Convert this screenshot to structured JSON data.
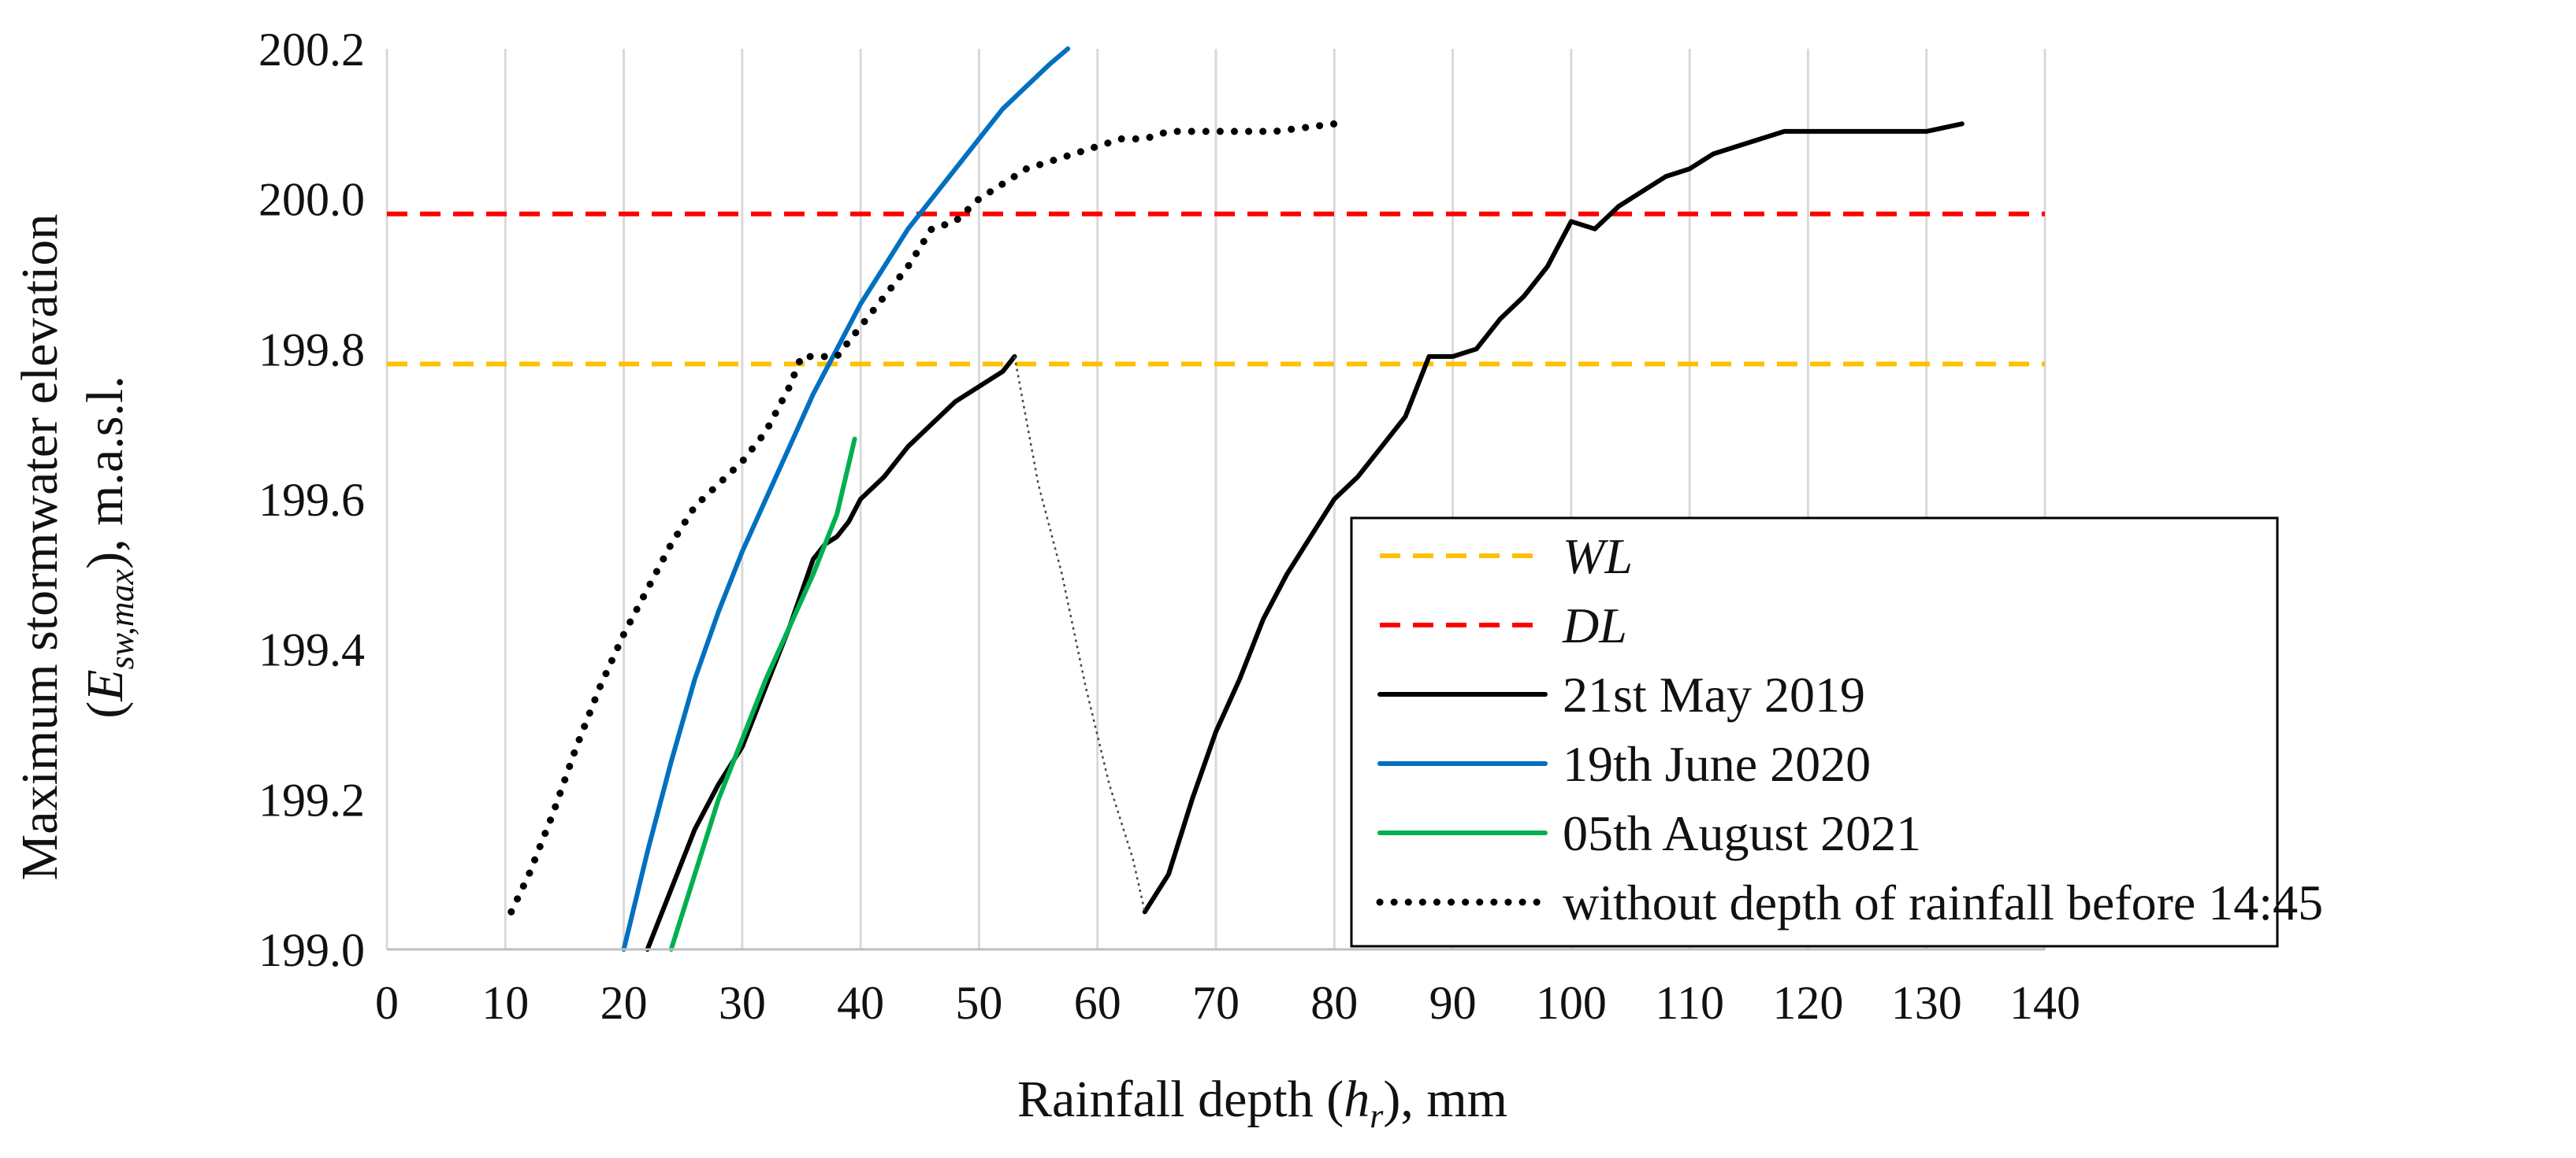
{
  "chart_data": {
    "type": "line",
    "title": "",
    "xlabel": {
      "main": "Rainfall depth (",
      "var": "h",
      "sub": "r",
      "tail": "), mm"
    },
    "ylabel": {
      "line1": "Maximum stormwater elevation",
      "open": "(",
      "var": "E",
      "sub": "sw,max",
      "tail": "), m.a.s.l."
    },
    "xlim": [
      0,
      140
    ],
    "ylim": [
      199.0,
      200.2
    ],
    "x_ticks": [
      0,
      10,
      20,
      30,
      40,
      50,
      60,
      70,
      80,
      90,
      100,
      110,
      120,
      130,
      140
    ],
    "y_ticks": [
      "199.0",
      "199.2",
      "199.4",
      "199.6",
      "199.8",
      "200.0",
      "200.2"
    ],
    "grid": "vertical",
    "legend_position": "bottom-right",
    "series": [
      {
        "name": "WL",
        "italic": true,
        "color": "#ffc000",
        "dash": "dashed",
        "points": [
          [
            0,
            199.78
          ],
          [
            140,
            199.78
          ]
        ]
      },
      {
        "name": "DL",
        "italic": true,
        "color": "#ff0000",
        "dash": "dashed",
        "points": [
          [
            0,
            199.98
          ],
          [
            140,
            199.98
          ]
        ]
      },
      {
        "name": "21st May 2019",
        "color": "#000000",
        "dash": "solid",
        "points": [
          [
            22,
            199.0
          ],
          [
            24,
            199.08
          ],
          [
            26,
            199.16
          ],
          [
            28,
            199.22
          ],
          [
            30,
            199.27
          ],
          [
            32,
            199.35
          ],
          [
            34,
            199.43
          ],
          [
            36,
            199.52
          ],
          [
            37,
            199.54
          ],
          [
            38,
            199.55
          ],
          [
            39,
            199.57
          ],
          [
            40,
            199.6
          ],
          [
            42,
            199.63
          ],
          [
            44,
            199.67
          ],
          [
            46,
            199.7
          ],
          [
            48,
            199.73
          ],
          [
            50,
            199.75
          ],
          [
            52,
            199.77
          ],
          [
            53,
            199.79
          ]
        ]
      },
      {
        "name": "21st May 2019 (continuation)",
        "legend": false,
        "color": "#000000",
        "dash": "solid",
        "points": [
          [
            64,
            199.05
          ],
          [
            66,
            199.1
          ],
          [
            68,
            199.2
          ],
          [
            70,
            199.29
          ],
          [
            72,
            199.36
          ],
          [
            74,
            199.44
          ],
          [
            76,
            199.5
          ],
          [
            78,
            199.55
          ],
          [
            80,
            199.6
          ],
          [
            82,
            199.63
          ],
          [
            84,
            199.67
          ],
          [
            86,
            199.71
          ],
          [
            88,
            199.79
          ],
          [
            90,
            199.79
          ],
          [
            92,
            199.8
          ],
          [
            94,
            199.84
          ],
          [
            96,
            199.87
          ],
          [
            98,
            199.91
          ],
          [
            100,
            199.97
          ],
          [
            102,
            199.96
          ],
          [
            104,
            199.99
          ],
          [
            106,
            200.01
          ],
          [
            108,
            200.03
          ],
          [
            110,
            200.04
          ],
          [
            112,
            200.06
          ],
          [
            114,
            200.07
          ],
          [
            116,
            200.08
          ],
          [
            118,
            200.09
          ],
          [
            120,
            200.09
          ],
          [
            125,
            200.09
          ],
          [
            130,
            200.09
          ],
          [
            133,
            200.1
          ]
        ]
      },
      {
        "name": "connector",
        "legend": false,
        "color": "#444444",
        "dash": "dotted-thin",
        "points": [
          [
            53,
            199.79
          ],
          [
            55,
            199.62
          ],
          [
            57,
            199.5
          ],
          [
            59,
            199.35
          ],
          [
            61,
            199.22
          ],
          [
            63,
            199.12
          ],
          [
            64,
            199.05
          ]
        ]
      },
      {
        "name": "19th June 2020",
        "color": "#0070c0",
        "dash": "solid",
        "points": [
          [
            20,
            199.0
          ],
          [
            22,
            199.13
          ],
          [
            24,
            199.25
          ],
          [
            26,
            199.36
          ],
          [
            28,
            199.45
          ],
          [
            30,
            199.53
          ],
          [
            32,
            199.6
          ],
          [
            34,
            199.67
          ],
          [
            36,
            199.74
          ],
          [
            38,
            199.8
          ],
          [
            40,
            199.86
          ],
          [
            42,
            199.91
          ],
          [
            44,
            199.96
          ],
          [
            46,
            200.0
          ],
          [
            48,
            200.04
          ],
          [
            50,
            200.08
          ],
          [
            52,
            200.12
          ],
          [
            54,
            200.15
          ],
          [
            56,
            200.18
          ],
          [
            57.5,
            200.2
          ]
        ]
      },
      {
        "name": "05th August 2021",
        "color": "#00b050",
        "dash": "solid",
        "points": [
          [
            24,
            199.0
          ],
          [
            26,
            199.1
          ],
          [
            28,
            199.2
          ],
          [
            30,
            199.28
          ],
          [
            32,
            199.36
          ],
          [
            34,
            199.43
          ],
          [
            36,
            199.5
          ],
          [
            38,
            199.58
          ],
          [
            39.5,
            199.68
          ]
        ]
      },
      {
        "name": "without depth of rainfall before 14:45",
        "color": "#000000",
        "dash": "dotted",
        "points": [
          [
            10.5,
            199.05
          ],
          [
            12,
            199.1
          ],
          [
            14,
            199.18
          ],
          [
            16,
            199.27
          ],
          [
            18,
            199.35
          ],
          [
            20,
            199.42
          ],
          [
            22,
            199.48
          ],
          [
            24,
            199.54
          ],
          [
            26,
            199.59
          ],
          [
            28,
            199.62
          ],
          [
            30,
            199.65
          ],
          [
            32,
            199.69
          ],
          [
            34,
            199.75
          ],
          [
            35,
            199.79
          ],
          [
            36,
            199.79
          ],
          [
            38,
            199.79
          ],
          [
            40,
            199.83
          ],
          [
            42,
            199.87
          ],
          [
            44,
            199.91
          ],
          [
            46,
            199.96
          ],
          [
            48,
            199.97
          ],
          [
            50,
            200.0
          ],
          [
            52,
            200.02
          ],
          [
            54,
            200.04
          ],
          [
            56,
            200.05
          ],
          [
            58,
            200.06
          ],
          [
            60,
            200.07
          ],
          [
            62,
            200.08
          ],
          [
            64,
            200.08
          ],
          [
            66,
            200.09
          ],
          [
            70,
            200.09
          ],
          [
            75,
            200.09
          ],
          [
            80,
            200.1
          ]
        ]
      }
    ]
  }
}
